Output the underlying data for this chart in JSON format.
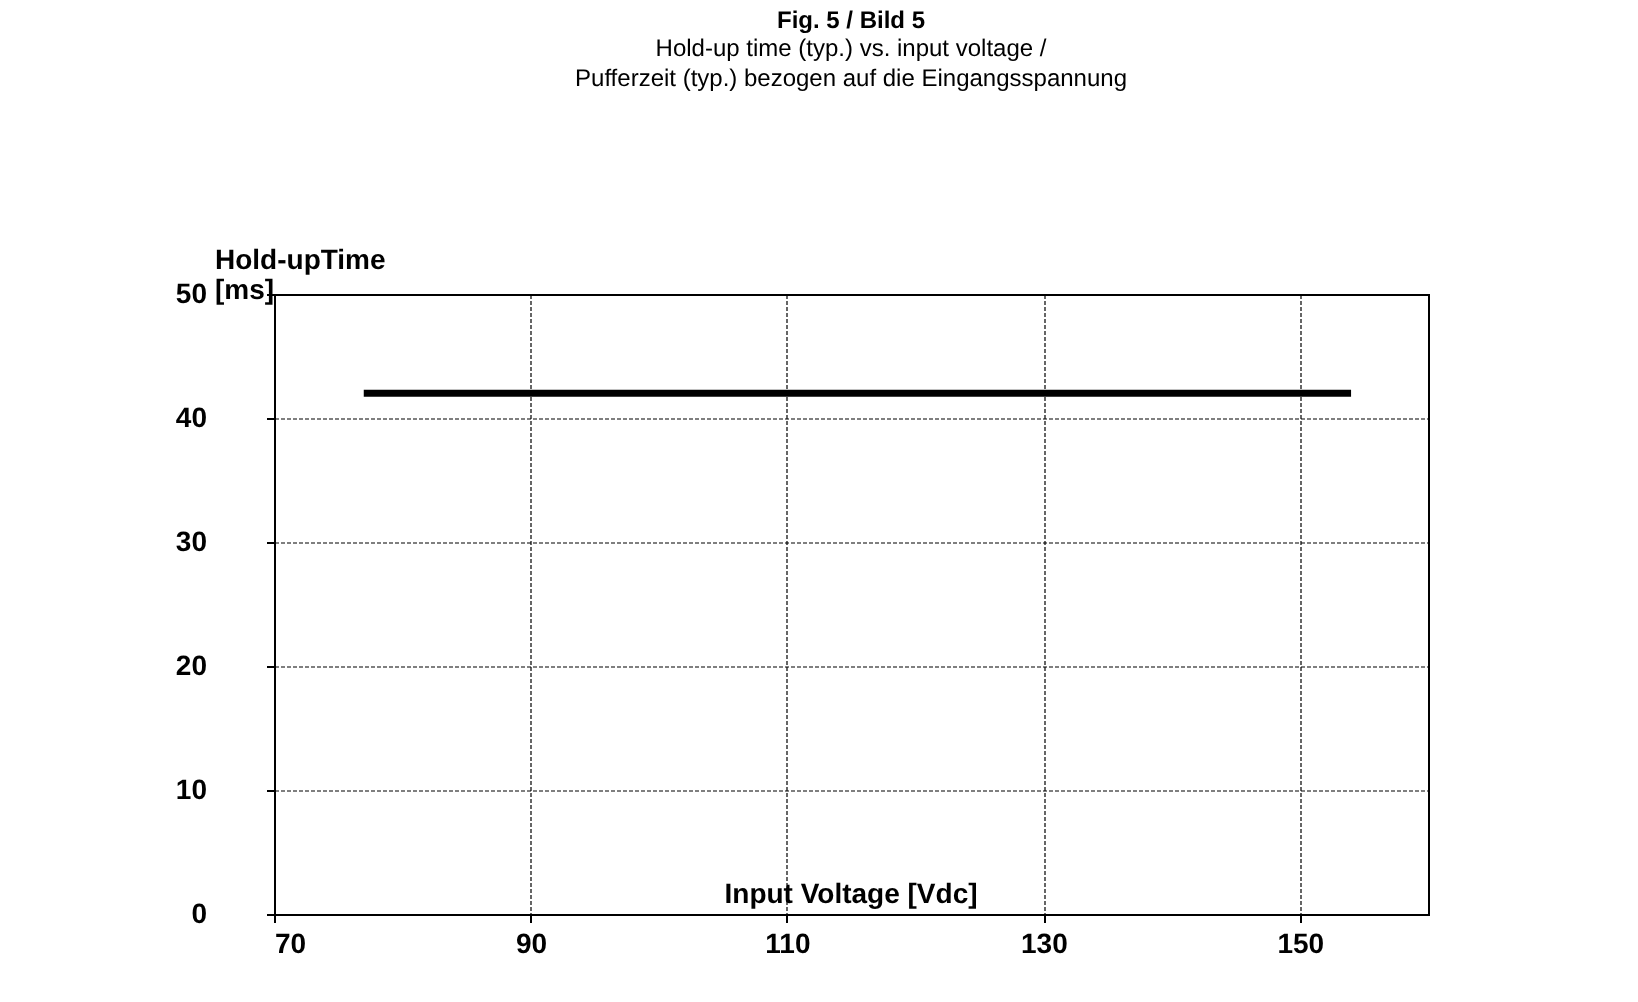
{
  "chart_data": {
    "type": "line",
    "title": "Fig. 5 / Bild 5",
    "subtitle": "Hold-up time (typ.) vs. input voltage /\nPufferzeit (typ.) bezogen auf die Eingangsspannung",
    "xlabel": "Input Voltage [Vdc]",
    "ylabel": "Hold-upTime [ms]",
    "x": [
      77,
      154
    ],
    "series": [
      {
        "color": "#000000",
        "values": [
          42,
          42
        ]
      }
    ],
    "xlim": [
      70,
      160
    ],
    "xticks": [
      70,
      90,
      110,
      130,
      150
    ],
    "ylim": [
      0,
      50
    ],
    "yticks": [
      0,
      10,
      20,
      30,
      40,
      50
    ],
    "grid": true,
    "marker": "none",
    "line_style": "solid"
  }
}
